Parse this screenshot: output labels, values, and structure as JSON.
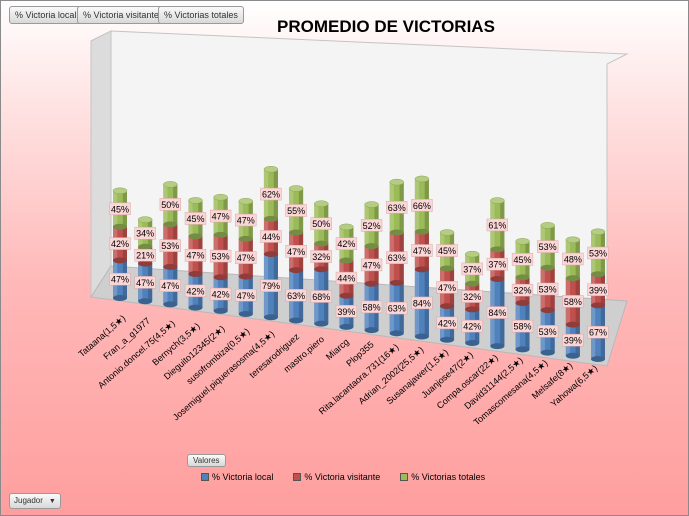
{
  "field_buttons": [
    "% Victoria local",
    "% Victoria visitante",
    "% Victorias totales"
  ],
  "legend_tag": "Valores",
  "axis_field": "Jugador",
  "colors": {
    "local": "#4f81bd",
    "visitante": "#c0504d",
    "totales": "#9bbb59",
    "label_bg": "#fbd6d6"
  },
  "chart_data": {
    "type": "bar",
    "stacked": true,
    "three_d": true,
    "title": "PROMEDIO DE VICTORIAS",
    "categories": [
      "Tataana(1,5★)",
      "Fran_a_g1977",
      "Antonio.doncel.75(4,5★)",
      "Bernych(3,5★)",
      "Dieguito12345(2★)",
      "susofrombiza(0,5★)",
      "Josemiguel.piquerasosma(4,5★)",
      "teresarodriguez",
      "mastro.piero",
      "Miarcg",
      "Plop355",
      "Rita.lacantaora.731(16★)",
      "Adrian_2002(25,5★)",
      "Susanajawer(1,5★)",
      "Juanjose47(2★)",
      "Compa.oscar(22★)",
      "David31144(2,5★)",
      "Tomascomesana(4,5★)",
      "Melsafe(8★)",
      "Yahowa(6,5★)"
    ],
    "series": [
      {
        "name": "% Victoria local",
        "values": [
          47,
          47,
          47,
          42,
          42,
          47,
          79,
          63,
          68,
          39,
          58,
          63,
          84,
          42,
          42,
          84,
          58,
          53,
          39,
          67
        ],
        "labels": [
          "47%",
          "47%",
          "47%",
          "42%",
          "42%",
          "47%",
          "79%",
          "63%",
          "68%",
          "39%",
          "58%",
          "63%",
          "84%",
          "42%",
          "42%",
          "84%",
          "58%",
          "53%",
          "39%",
          "67%"
        ]
      },
      {
        "name": "% Victoria visitante",
        "values": [
          42,
          21,
          53,
          47,
          53,
          47,
          44,
          47,
          32,
          44,
          47,
          63,
          47,
          47,
          32,
          37,
          32,
          53,
          58,
          39
        ],
        "labels": [
          "42%",
          "21%",
          "53%",
          "47%",
          "53%",
          "47%",
          "44%",
          "47%",
          "32%",
          "44%",
          "47%",
          "63%",
          "47%",
          "47%",
          "32%",
          "37%",
          "32%",
          "53%",
          "58%",
          "39%"
        ]
      },
      {
        "name": "% Victorias totales",
        "values": [
          45,
          34,
          50,
          45,
          47,
          47,
          62,
          55,
          50,
          42,
          52,
          63,
          66,
          45,
          37,
          61,
          45,
          53,
          48,
          53
        ],
        "labels": [
          "45%",
          "34%",
          "50%",
          "45%",
          "47%",
          "47%",
          "62%",
          "55%",
          "50%",
          "42%",
          "52%",
          "63%",
          "66%",
          "45%",
          "37%",
          "61%",
          "45%",
          "53%",
          "48%",
          "53%"
        ]
      }
    ],
    "legend_position": "bottom",
    "grid": false
  }
}
